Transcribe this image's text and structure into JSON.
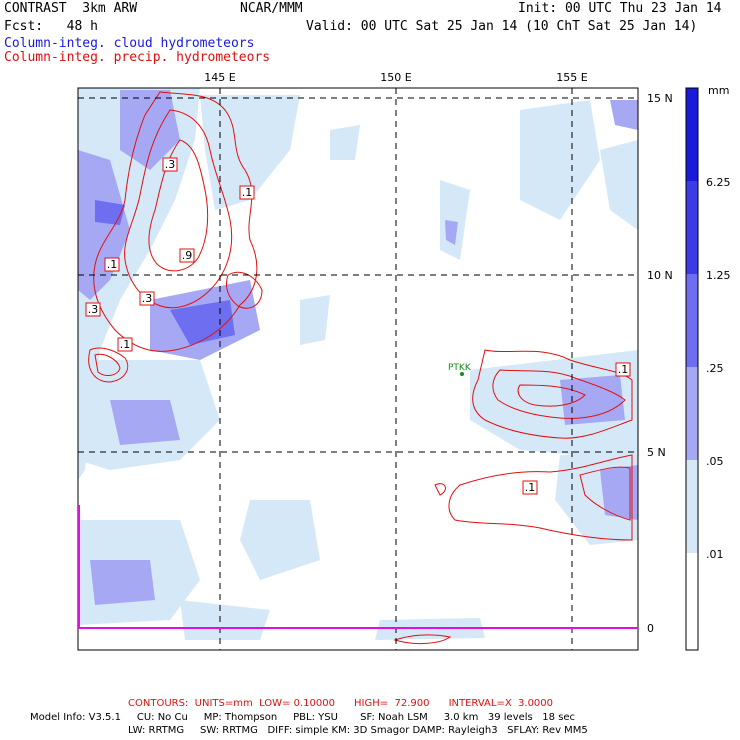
{
  "header": {
    "model": "CONTRAST  3km ARW",
    "org": "NCAR/MMM",
    "init": "Init: 00 UTC Thu 23 Jan 14",
    "fcst": "Fcst:   48 h",
    "valid": "Valid: 00 UTC Sat 25 Jan 14 (10 ChT Sat 25 Jan 14)",
    "field1": "Column-integ. cloud hydrometeors",
    "field2": "Column-integ. precip. hydrometeors"
  },
  "map": {
    "lon_labels": [
      "145 E",
      "150 E",
      "155 E"
    ],
    "lat_labels": [
      "15 N",
      "10 N",
      "5 N",
      "0"
    ],
    "station": "PTKK",
    "contour_labels": [
      ".3",
      ".1",
      ".1",
      ".9",
      ".3",
      ".3",
      ".1",
      ".1",
      ".1"
    ],
    "colors": {
      "precip_contour": "#e01010",
      "station": "#1a8a1a",
      "equator_line": "#e010e0"
    }
  },
  "colorbar": {
    "units": "mm",
    "levels": [
      "6.25",
      "1.25",
      ".25",
      ".05",
      ".01"
    ],
    "colors": [
      "#1a1adc",
      "#3c3ce6",
      "#6e6ef0",
      "#a6a8f4",
      "#d4e8f8",
      "#ffffff"
    ]
  },
  "footer": {
    "contours": "CONTOURS:  UNITS=mm  LOW= 0.10000      HIGH=  72.900      INTERVAL=X  3.0000",
    "info1": "Model Info: V3.5.1     CU: No Cu     MP: Thompson     PBL: YSU       SF: Noah LSM     3.0 km   39 levels   18 sec",
    "info2": "LW: RRTMG     SW: RRTMG   DIFF: simple KM: 3D Smagor DAMP: Rayleigh3   SFLAY: Rev MM5"
  }
}
